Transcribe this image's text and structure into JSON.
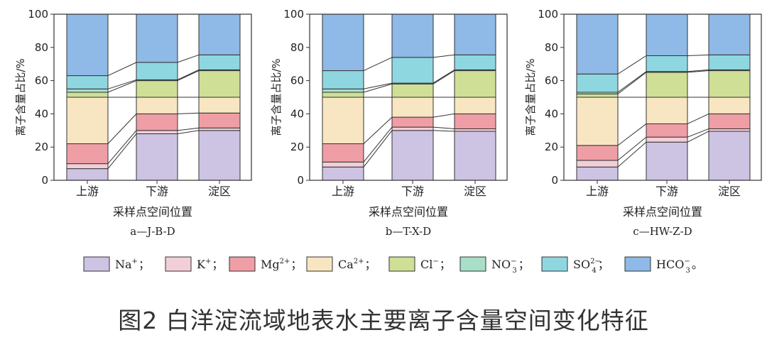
{
  "chart_data": [
    {
      "type": "stacked-bar",
      "panel_label": "a—J-B-D",
      "xlabel": "采样点空间位置",
      "ylabel": "离子含量占比/%",
      "ylim": [
        0,
        100
      ],
      "yticks": [
        "0",
        "20",
        "40",
        "60",
        "80",
        "100"
      ],
      "categories": [
        "上游",
        "下游",
        "淀区"
      ],
      "series": [
        {
          "name": "Na+",
          "values": [
            7,
            28,
            30
          ]
        },
        {
          "name": "K+",
          "values": [
            3,
            2,
            1.5
          ]
        },
        {
          "name": "Mg2+",
          "values": [
            12,
            10,
            9
          ]
        },
        {
          "name": "Ca2+",
          "values": [
            28,
            10,
            9.5
          ]
        },
        {
          "name": "Cl-",
          "values": [
            3,
            10,
            16
          ]
        },
        {
          "name": "NO3-",
          "values": [
            2,
            0.5,
            0.5
          ]
        },
        {
          "name": "SO42-",
          "values": [
            8,
            10.5,
            9
          ]
        },
        {
          "name": "HCO3-",
          "values": [
            37,
            29,
            24.5
          ]
        }
      ]
    },
    {
      "type": "stacked-bar",
      "panel_label": "b—T-X-D",
      "xlabel": "采样点空间位置",
      "ylabel": "离子含量占比/%",
      "ylim": [
        0,
        100
      ],
      "yticks": [
        "0",
        "20",
        "40",
        "60",
        "80",
        "100"
      ],
      "categories": [
        "上游",
        "下游",
        "淀区"
      ],
      "series": [
        {
          "name": "Na+",
          "values": [
            8,
            30,
            29.5
          ]
        },
        {
          "name": "K+",
          "values": [
            3,
            2,
            1.5
          ]
        },
        {
          "name": "Mg2+",
          "values": [
            11,
            6,
            9
          ]
        },
        {
          "name": "Ca2+",
          "values": [
            28,
            12,
            10
          ]
        },
        {
          "name": "Cl-",
          "values": [
            3,
            8,
            16
          ]
        },
        {
          "name": "NO3-",
          "values": [
            2,
            0.5,
            0.5
          ]
        },
        {
          "name": "SO42-",
          "values": [
            11,
            15.5,
            9
          ]
        },
        {
          "name": "HCO3-",
          "values": [
            34,
            26,
            24.5
          ]
        }
      ]
    },
    {
      "type": "stacked-bar",
      "panel_label": "c—HW-Z-D",
      "xlabel": "采样点空间位置",
      "ylabel": "离子含量占比/%",
      "ylim": [
        0,
        100
      ],
      "yticks": [
        "0",
        "20",
        "40",
        "60",
        "80",
        "100"
      ],
      "categories": [
        "上游",
        "下游",
        "淀区"
      ],
      "series": [
        {
          "name": "Na+",
          "values": [
            8,
            23,
            29.5
          ]
        },
        {
          "name": "K+",
          "values": [
            4,
            3,
            1.5
          ]
        },
        {
          "name": "Mg2+",
          "values": [
            9,
            8,
            9
          ]
        },
        {
          "name": "Ca2+",
          "values": [
            29,
            16,
            10
          ]
        },
        {
          "name": "Cl-",
          "values": [
            2,
            15,
            16
          ]
        },
        {
          "name": "NO3-",
          "values": [
            1,
            0.5,
            0.5
          ]
        },
        {
          "name": "SO42-",
          "values": [
            11,
            9.5,
            9
          ]
        },
        {
          "name": "HCO3-",
          "values": [
            36,
            25,
            24.5
          ]
        }
      ]
    }
  ],
  "legend": [
    {
      "base": "Na",
      "sup": "+",
      "sub": "",
      "suffix": "；",
      "color": "#cdc3e3"
    },
    {
      "base": "K",
      "sup": "+",
      "sub": "",
      "suffix": "；",
      "color": "#f2cfd8"
    },
    {
      "base": "Mg",
      "sup": "2+",
      "sub": "",
      "suffix": "；",
      "color": "#ef9ea5"
    },
    {
      "base": "Ca",
      "sup": "2+",
      "sub": "",
      "suffix": "；",
      "color": "#f8e6c2"
    },
    {
      "base": "Cl",
      "sup": "−",
      "sub": "",
      "suffix": "；",
      "color": "#cfdf96"
    },
    {
      "base": "NO",
      "sup": "−",
      "sub": "3",
      "suffix": "；",
      "color": "#a7dfc9"
    },
    {
      "base": "SO",
      "sup": "2−",
      "sub": "4",
      "suffix": "；",
      "color": "#8fd7e0"
    },
    {
      "base": "HCO",
      "sup": "−",
      "sub": "3",
      "suffix": "。",
      "color": "#8fb9e6"
    }
  ],
  "caption": "图2 白洋淀流域地表水主要离子含量空间变化特征"
}
